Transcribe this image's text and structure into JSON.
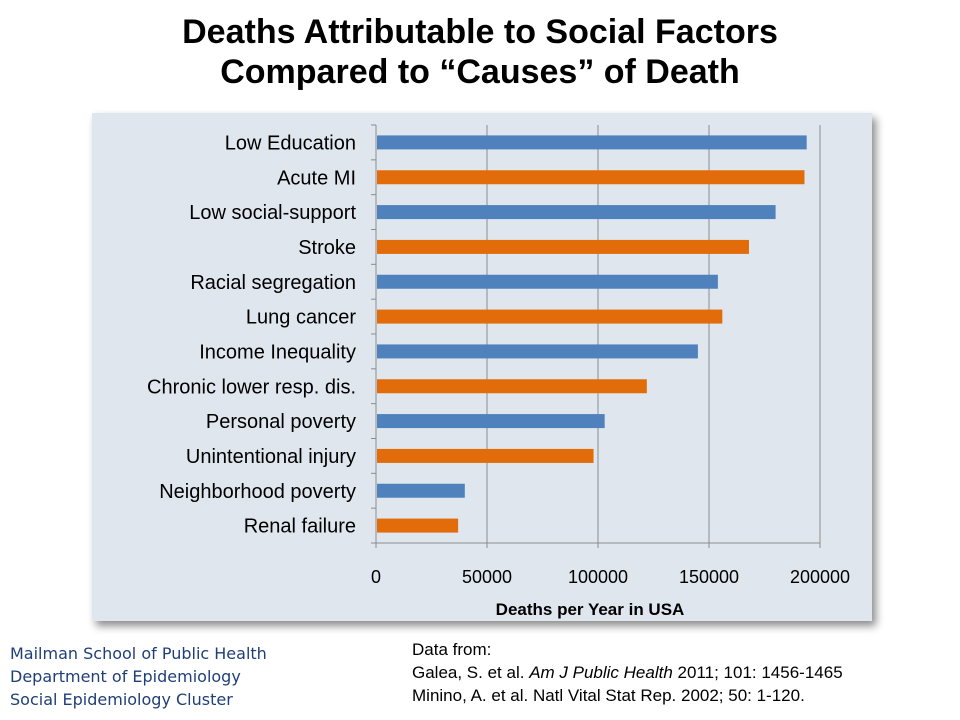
{
  "title": {
    "line1": "Deaths Attributable to Social Factors",
    "line2": "Compared to “Causes” of Death"
  },
  "colors": {
    "social": "#4f81bd",
    "cause": "#e36c0a",
    "chart_bg": "#dfe6ee",
    "footer_text": "#1f3f78"
  },
  "chart_data": {
    "type": "bar",
    "orientation": "horizontal",
    "categories": [
      "Low Education",
      "Acute MI",
      "Low social-support",
      "Stroke",
      "Racial segregation",
      "Lung cancer",
      "Income Inequality",
      "Chronic lower resp. dis.",
      "Personal poverty",
      "Unintentional injury",
      "Neighborhood poverty",
      "Renal failure"
    ],
    "values": [
      194000,
      193000,
      180000,
      168000,
      154000,
      156000,
      145000,
      122000,
      103000,
      98000,
      40000,
      37000
    ],
    "bar_colors": [
      "social",
      "cause",
      "social",
      "cause",
      "social",
      "cause",
      "social",
      "cause",
      "social",
      "cause",
      "social",
      "cause"
    ],
    "xlabel": "Deaths per Year in USA",
    "ylabel": "",
    "xlim": [
      0,
      200000
    ],
    "xticks": [
      0,
      50000,
      100000,
      150000,
      200000
    ],
    "xtick_labels": [
      "0",
      "50000",
      "100000",
      "150000",
      "200000"
    ],
    "grid": "vertical"
  },
  "footer": {
    "institution": [
      "Mailman School of Public Health",
      "Department of Epidemiology",
      "Social Epidemiology Cluster"
    ],
    "sources_heading": "Data from:",
    "source1": {
      "authors": "Galea, S. et al. ",
      "journal": "Am J Public Health",
      "details": " 2011; 101: 1456-1465"
    },
    "source2": "Minino, A. et al. Natl Vital Stat Rep. 2002; 50: 1-120."
  }
}
